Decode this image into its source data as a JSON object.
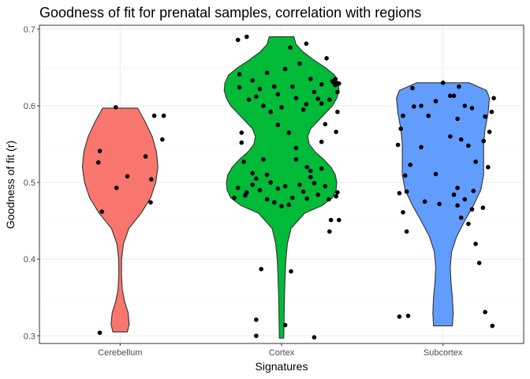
{
  "chart_data": {
    "type": "violin",
    "title": "Goodness of fit for prenatal samples, correlation with regions",
    "xlabel": "Signatures",
    "ylabel": "Goodness of fit (r)",
    "categories": [
      "Cerebellum",
      "Cortex",
      "Subcortex"
    ],
    "ylim": [
      0.29,
      0.705
    ],
    "yticks": [
      0.3,
      0.4,
      0.5,
      0.6,
      0.7
    ],
    "ytick_labels": [
      "0.3",
      "0.4",
      "0.5",
      "0.6",
      "0.7"
    ],
    "grid": true,
    "legend": "none",
    "colors": {
      "Cerebellum": "#F8766D",
      "Cortex": "#00BA38",
      "Subcortex": "#619CFF"
    },
    "violins": [
      {
        "category": "Cerebellum",
        "color": "#F8766D",
        "profile": [
          [
            0.305,
            0.1
          ],
          [
            0.315,
            0.125
          ],
          [
            0.33,
            0.11
          ],
          [
            0.345,
            0.06
          ],
          [
            0.36,
            0.03
          ],
          [
            0.38,
            0.018
          ],
          [
            0.4,
            0.02
          ],
          [
            0.42,
            0.045
          ],
          [
            0.44,
            0.12
          ],
          [
            0.46,
            0.29
          ],
          [
            0.48,
            0.42
          ],
          [
            0.5,
            0.49
          ],
          [
            0.52,
            0.52
          ],
          [
            0.54,
            0.5
          ],
          [
            0.56,
            0.44
          ],
          [
            0.58,
            0.34
          ],
          [
            0.597,
            0.24
          ]
        ],
        "points": [
          [
            -0.28,
            0.304
          ],
          [
            0.42,
            0.474
          ],
          [
            -0.3,
            0.526
          ],
          [
            0.58,
            0.556
          ],
          [
            -0.28,
            0.541
          ],
          [
            -0.06,
            0.598
          ],
          [
            -0.05,
            0.493
          ],
          [
            0.1,
            0.508
          ],
          [
            0.6,
            0.587
          ],
          [
            0.47,
            0.587
          ],
          [
            0.35,
            0.534
          ],
          [
            0.43,
            0.504
          ],
          [
            -0.25,
            0.462
          ]
        ]
      },
      {
        "category": "Cortex",
        "color": "#00BA38",
        "profile": [
          [
            0.297,
            0.03
          ],
          [
            0.32,
            0.035
          ],
          [
            0.35,
            0.04
          ],
          [
            0.38,
            0.05
          ],
          [
            0.4,
            0.06
          ],
          [
            0.42,
            0.08
          ],
          [
            0.44,
            0.13
          ],
          [
            0.46,
            0.32
          ],
          [
            0.47,
            0.56
          ],
          [
            0.48,
            0.7
          ],
          [
            0.49,
            0.75
          ],
          [
            0.5,
            0.76
          ],
          [
            0.51,
            0.74
          ],
          [
            0.52,
            0.68
          ],
          [
            0.53,
            0.58
          ],
          [
            0.54,
            0.46
          ],
          [
            0.55,
            0.38
          ],
          [
            0.56,
            0.36
          ],
          [
            0.57,
            0.4
          ],
          [
            0.58,
            0.5
          ],
          [
            0.59,
            0.6
          ],
          [
            0.6,
            0.7
          ],
          [
            0.61,
            0.76
          ],
          [
            0.62,
            0.79
          ],
          [
            0.63,
            0.78
          ],
          [
            0.64,
            0.73
          ],
          [
            0.65,
            0.6
          ],
          [
            0.66,
            0.44
          ],
          [
            0.67,
            0.3
          ],
          [
            0.68,
            0.2
          ],
          [
            0.69,
            0.17
          ]
        ],
        "points": [
          [
            -0.35,
            0.3
          ],
          [
            -0.35,
            0.321
          ],
          [
            0.45,
            0.298
          ],
          [
            -0.28,
            0.387
          ],
          [
            0.05,
            0.314
          ],
          [
            0.13,
            0.384
          ],
          [
            0.66,
            0.436
          ],
          [
            0.68,
            0.451
          ],
          [
            -0.6,
            0.686
          ],
          [
            -0.48,
            0.69
          ],
          [
            0.12,
            0.676
          ],
          [
            0.34,
            0.681
          ],
          [
            0.62,
            0.662
          ],
          [
            0.7,
            0.632
          ],
          [
            0.66,
            0.608
          ],
          [
            0.74,
            0.627
          ],
          [
            0.74,
            0.635
          ],
          [
            0.72,
            0.63
          ],
          [
            -0.55,
            0.565
          ],
          [
            -0.52,
            0.527
          ],
          [
            -0.48,
            0.487
          ],
          [
            0.77,
            0.618
          ],
          [
            0.76,
            0.629
          ],
          [
            0.79,
            0.629
          ],
          [
            0.77,
            0.592
          ],
          [
            0.6,
            0.576
          ],
          [
            0.75,
            0.566
          ],
          [
            0.75,
            0.482
          ],
          [
            0.77,
            0.487
          ],
          [
            0.79,
            0.451
          ],
          [
            0.55,
            0.603
          ],
          [
            0.34,
            0.602
          ],
          [
            -0.05,
            0.615
          ],
          [
            -0.35,
            0.612
          ],
          [
            -0.58,
            0.624
          ],
          [
            -0.58,
            0.641
          ],
          [
            -0.4,
            0.633
          ],
          [
            -0.2,
            0.643
          ],
          [
            0.05,
            0.648
          ],
          [
            0.25,
            0.655
          ],
          [
            0.4,
            0.635
          ],
          [
            0.55,
            0.628
          ],
          [
            -0.1,
            0.625
          ],
          [
            -0.3,
            0.622
          ],
          [
            0.15,
            0.625
          ],
          [
            0.45,
            0.618
          ],
          [
            -0.45,
            0.608
          ],
          [
            0.2,
            0.61
          ],
          [
            0.5,
            0.609
          ],
          [
            -0.25,
            0.6
          ],
          [
            0.3,
            0.595
          ],
          [
            0.0,
            0.598
          ],
          [
            -0.15,
            0.592
          ],
          [
            0.1,
            0.565
          ],
          [
            -0.05,
            0.575
          ],
          [
            0.2,
            0.545
          ],
          [
            -0.25,
            0.53
          ],
          [
            0.35,
            0.52
          ],
          [
            -0.35,
            0.505
          ],
          [
            0.4,
            0.507
          ],
          [
            -0.4,
            0.497
          ],
          [
            0.45,
            0.499
          ],
          [
            -0.15,
            0.5
          ],
          [
            0.25,
            0.497
          ],
          [
            -0.3,
            0.49
          ],
          [
            0.05,
            0.495
          ],
          [
            -0.05,
            0.492
          ],
          [
            0.3,
            0.488
          ],
          [
            -0.5,
            0.483
          ],
          [
            0.5,
            0.484
          ],
          [
            -0.2,
            0.478
          ],
          [
            0.15,
            0.48
          ],
          [
            -0.1,
            0.474
          ],
          [
            0.1,
            0.471
          ],
          [
            0.0,
            0.469
          ],
          [
            0.35,
            0.479
          ],
          [
            -0.4,
            0.512
          ],
          [
            0.4,
            0.515
          ],
          [
            0.2,
            0.53
          ],
          [
            -0.2,
            0.51
          ],
          [
            0.6,
            0.495
          ],
          [
            -0.6,
            0.493
          ],
          [
            0.55,
            0.518
          ],
          [
            -0.55,
            0.552
          ],
          [
            0.55,
            0.553
          ],
          [
            -0.65,
            0.48
          ],
          [
            0.65,
            0.478
          ]
        ]
      },
      {
        "category": "Subcortex",
        "color": "#619CFF",
        "profile": [
          [
            0.313,
            0.13
          ],
          [
            0.33,
            0.14
          ],
          [
            0.35,
            0.13
          ],
          [
            0.37,
            0.11
          ],
          [
            0.39,
            0.1
          ],
          [
            0.41,
            0.12
          ],
          [
            0.43,
            0.19
          ],
          [
            0.45,
            0.3
          ],
          [
            0.47,
            0.42
          ],
          [
            0.49,
            0.52
          ],
          [
            0.51,
            0.56
          ],
          [
            0.53,
            0.56
          ],
          [
            0.55,
            0.56
          ],
          [
            0.57,
            0.58
          ],
          [
            0.59,
            0.62
          ],
          [
            0.61,
            0.64
          ],
          [
            0.62,
            0.6
          ],
          [
            0.63,
            0.36
          ]
        ],
        "points": [
          [
            -0.6,
            0.325
          ],
          [
            -0.48,
            0.326
          ],
          [
            0.58,
            0.331
          ],
          [
            0.68,
            0.313
          ],
          [
            0.5,
            0.395
          ],
          [
            -0.5,
            0.436
          ],
          [
            0.45,
            0.42
          ],
          [
            -0.55,
            0.461
          ],
          [
            0.62,
            0.52
          ],
          [
            0.7,
            0.61
          ],
          [
            0.67,
            0.592
          ],
          [
            0.58,
            0.586
          ],
          [
            0.56,
            0.554
          ],
          [
            0.64,
            0.566
          ],
          [
            -0.62,
            0.549
          ],
          [
            -0.6,
            0.486
          ],
          [
            -0.52,
            0.509
          ],
          [
            -0.58,
            0.57
          ],
          [
            -0.55,
            0.587
          ],
          [
            -0.42,
            0.623
          ],
          [
            -0.3,
            0.6
          ],
          [
            -0.1,
            0.606
          ],
          [
            0.1,
            0.613
          ],
          [
            0.3,
            0.6
          ],
          [
            0.22,
            0.625
          ],
          [
            0.0,
            0.63
          ],
          [
            0.15,
            0.613
          ],
          [
            -0.4,
            0.599
          ],
          [
            0.4,
            0.597
          ],
          [
            -0.2,
            0.587
          ],
          [
            0.2,
            0.583
          ],
          [
            0.25,
            0.556
          ],
          [
            -0.3,
            0.546
          ],
          [
            0.35,
            0.548
          ],
          [
            -0.45,
            0.523
          ],
          [
            0.45,
            0.527
          ],
          [
            -0.1,
            0.511
          ],
          [
            0.1,
            0.56
          ],
          [
            0.3,
            0.478
          ],
          [
            -0.25,
            0.475
          ],
          [
            0.2,
            0.47
          ],
          [
            -0.05,
            0.472
          ],
          [
            0.4,
            0.465
          ],
          [
            0.35,
            0.446
          ],
          [
            0.25,
            0.454
          ],
          [
            0.15,
            0.484
          ],
          [
            0.2,
            0.493
          ],
          [
            0.42,
            0.489
          ],
          [
            -0.5,
            0.488
          ],
          [
            0.55,
            0.467
          ]
        ]
      }
    ]
  }
}
